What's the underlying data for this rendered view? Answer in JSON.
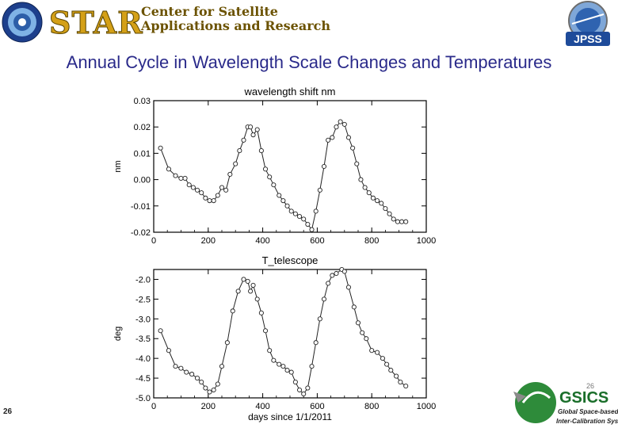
{
  "header": {
    "star_word": "STAR",
    "star_line1": "Center for Satellite",
    "star_line2": "Applications and Research",
    "jpss_label": "JPSS"
  },
  "slide": {
    "title": "Annual Cycle in Wavelength Scale Changes and Temperatures",
    "number": "26",
    "corner_number": "26"
  },
  "footer_logo": {
    "name": "GSICS",
    "line1": "Global Space-based",
    "line2": "Inter-Calibration System"
  },
  "chart_data": [
    {
      "type": "line",
      "title": "wavelength shift nm",
      "xlabel": "",
      "ylabel": "nm",
      "xlim": [
        0,
        1000
      ],
      "ylim": [
        -0.02,
        0.03
      ],
      "xticks": [
        0,
        200,
        400,
        600,
        800,
        1000
      ],
      "yticks": [
        -0.02,
        -0.01,
        0.0,
        0.01,
        0.02,
        0.03
      ],
      "ytick_labels": [
        "-0.02",
        "-0.01",
        "0.00",
        "0.01",
        "0.02",
        "0.03"
      ],
      "marker": "circle",
      "x": [
        25,
        55,
        80,
        100,
        115,
        130,
        145,
        160,
        175,
        190,
        205,
        220,
        235,
        250,
        265,
        280,
        300,
        315,
        330,
        345,
        355,
        365,
        380,
        395,
        410,
        425,
        440,
        460,
        475,
        490,
        505,
        520,
        535,
        550,
        565,
        580,
        595,
        610,
        625,
        640,
        655,
        670,
        685,
        700,
        715,
        730,
        745,
        760,
        775,
        790,
        805,
        820,
        835,
        850,
        865,
        880,
        895,
        910,
        925
      ],
      "y": [
        0.012,
        0.004,
        0.0015,
        0.0005,
        0.0005,
        -0.002,
        -0.003,
        -0.004,
        -0.005,
        -0.007,
        -0.008,
        -0.008,
        -0.006,
        -0.003,
        -0.004,
        0.002,
        0.006,
        0.011,
        0.015,
        0.02,
        0.02,
        0.017,
        0.019,
        0.011,
        0.004,
        0.001,
        -0.002,
        -0.006,
        -0.008,
        -0.01,
        -0.012,
        -0.013,
        -0.014,
        -0.015,
        -0.017,
        -0.019,
        -0.012,
        -0.004,
        0.005,
        0.015,
        0.016,
        0.02,
        0.022,
        0.021,
        0.016,
        0.012,
        0.006,
        0.0,
        -0.003,
        -0.005,
        -0.007,
        -0.008,
        -0.009,
        -0.011,
        -0.013,
        -0.015,
        -0.016,
        -0.016,
        -0.016
      ]
    },
    {
      "type": "line",
      "title": "T_telescope",
      "xlabel": "days since 1/1/2011",
      "ylabel": "deg",
      "xlim": [
        0,
        1000
      ],
      "ylim": [
        -5.0,
        -1.75
      ],
      "xticks": [
        0,
        200,
        400,
        600,
        800,
        1000
      ],
      "yticks": [
        -5.0,
        -4.5,
        -4.0,
        -3.5,
        -3.0,
        -2.5,
        -2.0
      ],
      "ytick_labels": [
        "-5.0",
        "-4.5",
        "-4.0",
        "-3.5",
        "-3.0",
        "-2.5",
        "-2.0"
      ],
      "marker": "circle",
      "x": [
        25,
        55,
        80,
        100,
        120,
        140,
        160,
        175,
        190,
        205,
        220,
        235,
        250,
        270,
        290,
        310,
        330,
        345,
        355,
        365,
        380,
        395,
        410,
        425,
        440,
        460,
        475,
        490,
        505,
        520,
        535,
        550,
        565,
        580,
        595,
        610,
        625,
        640,
        655,
        670,
        690,
        700,
        715,
        735,
        750,
        765,
        780,
        800,
        820,
        840,
        855,
        870,
        890,
        905,
        925
      ],
      "y": [
        -3.3,
        -3.8,
        -4.2,
        -4.25,
        -4.35,
        -4.4,
        -4.5,
        -4.6,
        -4.75,
        -4.85,
        -4.8,
        -4.65,
        -4.2,
        -3.6,
        -2.8,
        -2.3,
        -2.0,
        -2.05,
        -2.3,
        -2.15,
        -2.5,
        -2.85,
        -3.3,
        -3.8,
        -4.05,
        -4.15,
        -4.2,
        -4.3,
        -4.35,
        -4.6,
        -4.8,
        -4.9,
        -4.75,
        -4.2,
        -3.6,
        -3.0,
        -2.5,
        -2.1,
        -1.9,
        -1.85,
        -1.75,
        -1.8,
        -2.2,
        -2.7,
        -3.1,
        -3.35,
        -3.5,
        -3.8,
        -3.85,
        -4.0,
        -4.15,
        -4.3,
        -4.45,
        -4.6,
        -4.7
      ]
    }
  ]
}
